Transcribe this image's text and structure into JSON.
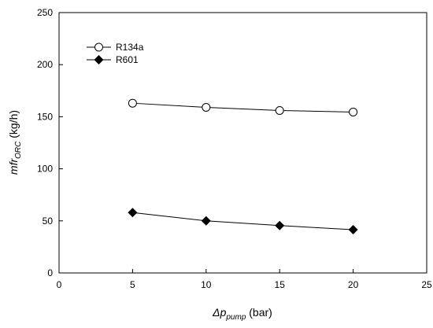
{
  "chart_data": {
    "type": "line",
    "xlabel": {
      "main": "Δp",
      "sub": "pump",
      "unit": " (bar)"
    },
    "ylabel": {
      "main": "mfr",
      "sub": "ORC",
      "unit": " (kg/h)"
    },
    "xlim": [
      0,
      25
    ],
    "ylim": [
      0,
      250
    ],
    "xticks": [
      "0",
      "5",
      "10",
      "15",
      "20",
      "25"
    ],
    "yticks": [
      "0",
      "50",
      "100",
      "150",
      "200",
      "250"
    ],
    "grid": false,
    "legend_position": "top-left",
    "x": [
      5,
      10,
      15,
      20
    ],
    "series": [
      {
        "name": "R134a",
        "marker": "open-circle",
        "color": "#000000",
        "values": [
          163,
          159,
          156,
          154.5
        ]
      },
      {
        "name": "R601",
        "marker": "filled-diamond",
        "color": "#000000",
        "values": [
          58,
          50,
          45.5,
          41.5
        ]
      }
    ]
  }
}
